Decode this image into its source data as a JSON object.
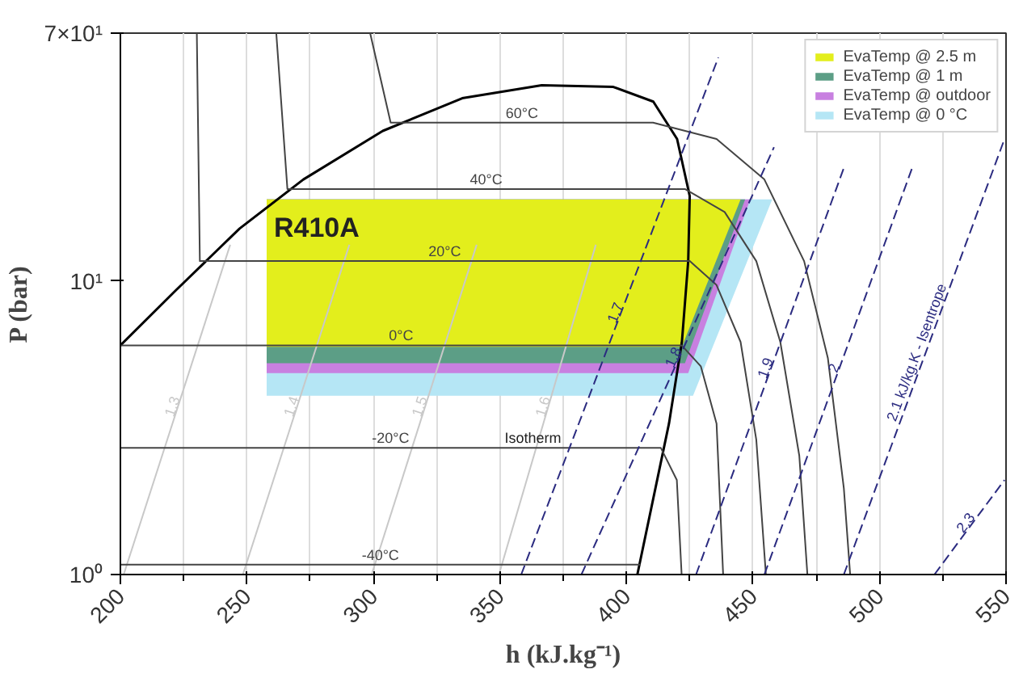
{
  "chart_data": {
    "type": "line",
    "xlabel": "h (kJ.kg⁻¹)",
    "ylabel": "P (bar)",
    "xlim": [
      200,
      550
    ],
    "xticks": [
      200,
      250,
      300,
      350,
      400,
      450,
      500,
      550
    ],
    "ylim": [
      1,
      70
    ],
    "yticks": [
      {
        "value": 1,
        "label": "10⁰"
      },
      {
        "value": 10,
        "label": "10¹"
      },
      {
        "value": 70,
        "label": "7×10¹"
      }
    ],
    "log": "y",
    "grid": "x",
    "legend": "top right",
    "annotations": [
      "R410A",
      {
        "text": "Isotherm",
        "x": 363,
        "y": 2.7
      }
    ],
    "series": [
      {
        "name": "EvaTemp @ 2.5 m",
        "color": "#e3ee1c",
        "x": [
          257.8,
          421.9,
          445.1
        ],
        "values": [
          null,
          null,
          null
        ],
        "lower": [
          5.97,
          5.97,
          19.0
        ],
        "upper": [
          19.0,
          19.0,
          19.0
        ]
      },
      {
        "name": "EvaTemp @ 1 m",
        "color": "#5c9e86",
        "x": [
          257.8,
          423.1,
          446.9
        ],
        "values": [
          null,
          null,
          null
        ],
        "lower": [
          5.25,
          5.25,
          19.0
        ],
        "upper": [
          19.0,
          19.0,
          19.0
        ]
      },
      {
        "name": "EvaTemp @ outdoor",
        "color": "#c880e0",
        "x": [
          257.8,
          424.4,
          448.9
        ],
        "values": [
          null,
          null,
          null
        ],
        "lower": [
          4.86,
          4.86,
          19.0
        ],
        "upper": [
          19.0,
          19.0,
          19.0
        ]
      },
      {
        "name": "EvaTemp @ 0 °C",
        "color": "#b5e6f5",
        "x": [
          257.8,
          426.3,
          457.6
        ],
        "values": [
          null,
          null,
          null
        ],
        "lower": [
          4.07,
          4.07,
          19.0
        ],
        "upper": [
          19.0,
          19.0,
          19.0
        ]
      },
      {
        "name": "1.3",
        "color": "#c8c8c8",
        "line_style": "solid",
        "x": [
          201.3,
          243.4
        ],
        "values": [
          1.0,
          13.3
        ]
      },
      {
        "name": "1.4",
        "color": "#c8c8c8",
        "line_style": "solid",
        "x": [
          248.4,
          290.5
        ],
        "values": [
          1.0,
          13.3
        ]
      },
      {
        "name": "1.5",
        "color": "#c8c8c8",
        "line_style": "solid",
        "x": [
          299.3,
          340.8
        ],
        "values": [
          1.0,
          13.3
        ]
      },
      {
        "name": "1.6",
        "color": "#c8c8c8",
        "line_style": "solid",
        "x": [
          349.6,
          387.9
        ],
        "values": [
          1.0,
          13.3
        ]
      },
      {
        "color": "#000000",
        "line_style": "solid",
        "x": [
          200,
          222,
          247.1,
          272.3,
          303.7,
          335.1,
          366.5,
          394.8,
          410.6,
          420.0,
          425.0,
          424.4,
          421.9,
          416.8,
          404.3
        ],
        "values": [
          6.04,
          9.32,
          15.1,
          22.2,
          32.5,
          42.0,
          46.5,
          45.9,
          40.9,
          30.5,
          19.5,
          11.7,
          6.2,
          3.27,
          1.0
        ]
      },
      {
        "name": "60°C",
        "color": "#444444",
        "line_style": "solid",
        "x": [
          298.7,
          306.8,
          410.5,
          435.6,
          454.5,
          470.2,
          479.6,
          485.9,
          488.4
        ],
        "values": [
          70,
          34.7,
          34.7,
          30.5,
          22.2,
          11.7,
          5.46,
          1.97,
          1.0
        ]
      },
      {
        "name": "40°C",
        "color": "#444444",
        "line_style": "solid",
        "x": [
          261.6,
          266.0,
          423.1,
          438.8,
          451.3,
          460.8,
          468.3,
          471.5
        ],
        "values": [
          70,
          20.6,
          20.6,
          17.2,
          11.7,
          6.2,
          2.54,
          1.0
        ]
      },
      {
        "name": "20°C",
        "color": "#444444",
        "line_style": "solid",
        "x": [
          230.2,
          231.4,
          425.0,
          435.6,
          445.1,
          451.3,
          455.1
        ],
        "values": [
          70,
          11.7,
          11.7,
          9.69,
          6.2,
          2.88,
          1.0
        ]
      },
      {
        "name": "0°C",
        "color": "#444444",
        "line_style": "solid",
        "x": [
          200,
          421.8,
          429.4,
          435.6,
          438.2
        ],
        "values": [
          6.04,
          6.04,
          5.12,
          3.27,
          1.0
        ]
      },
      {
        "name": "-20°C",
        "color": "#444444",
        "line_style": "solid",
        "x": [
          200,
          413.6,
          419.9,
          421.8
        ],
        "values": [
          2.7,
          2.7,
          2.1,
          1.0
        ]
      },
      {
        "name": "-40°C",
        "color": "#444444",
        "line_style": "solid",
        "x": [
          200,
          405.5
        ],
        "values": [
          1.08,
          1.08
        ]
      },
      {
        "name": "1.7",
        "color": "#2b2b80",
        "line_style": "dashed",
        "x": [
          358.4,
          436.3
        ],
        "values": [
          1.0,
          57.8
        ]
      },
      {
        "name": "1.8",
        "color": "#2b2b80",
        "line_style": "dashed",
        "x": [
          382.2,
          458.3
        ],
        "values": [
          1.0,
          28.6
        ]
      },
      {
        "name": "1.9",
        "color": "#2b2b80",
        "line_style": "dashed",
        "x": [
          427.5,
          485.9
        ],
        "values": [
          1.0,
          24.3
        ]
      },
      {
        "name": "2",
        "color": "#2b2b80",
        "line_style": "dashed",
        "x": [
          454.5,
          512.9
        ],
        "values": [
          1.0,
          24.3
        ]
      },
      {
        "name": "2.1 kJ/kg.K - Isentrope",
        "color": "#2b2b80",
        "line_style": "dashed",
        "x": [
          485.9,
          549.4
        ],
        "values": [
          1.0,
          30.5
        ]
      },
      {
        "name": "2.3",
        "color": "#2b2b80",
        "line_style": "dashed",
        "x": [
          521.7,
          549.4
        ],
        "values": [
          1.0,
          2.1
        ]
      }
    ]
  }
}
